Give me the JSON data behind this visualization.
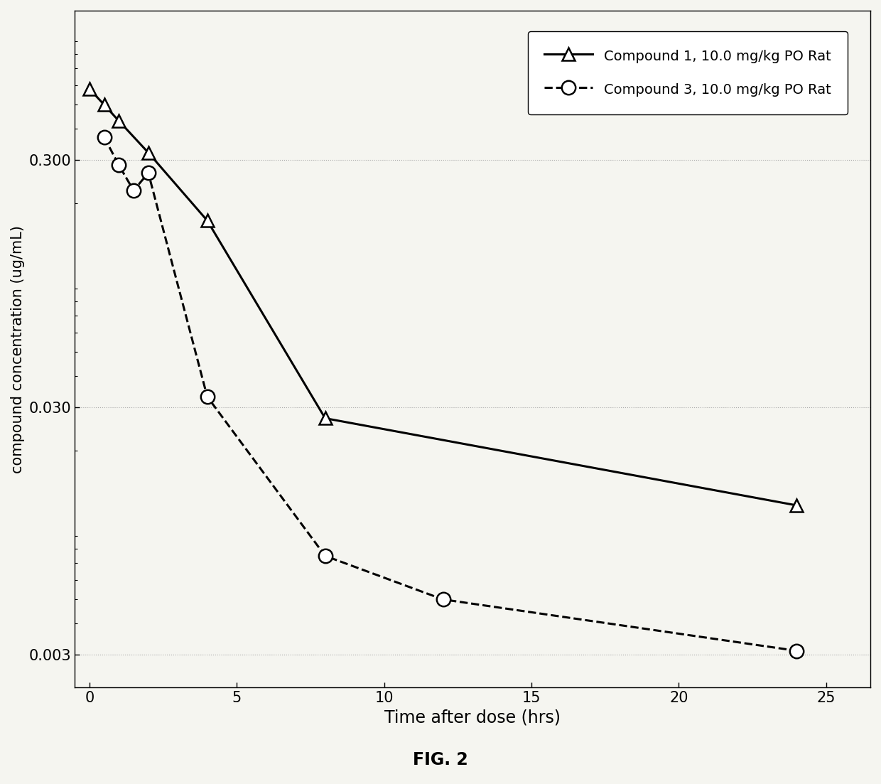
{
  "compound1_x": [
    0.0,
    0.5,
    1.0,
    2.0,
    4.0,
    8.0,
    24.0
  ],
  "compound1_y": [
    0.58,
    0.5,
    0.43,
    0.32,
    0.17,
    0.027,
    0.012
  ],
  "compound3_x": [
    0.5,
    1.0,
    1.5,
    2.0,
    4.0,
    8.0,
    12.0,
    24.0
  ],
  "compound3_y": [
    0.37,
    0.285,
    0.225,
    0.265,
    0.033,
    0.0075,
    0.005,
    0.0031
  ],
  "yticks": [
    0.003,
    0.03,
    0.3
  ],
  "ytick_labels": [
    "0.003",
    "0.030",
    "0.300"
  ],
  "xticks": [
    0,
    5,
    10,
    15,
    20,
    25
  ],
  "xlabel": "Time after dose (hrs)",
  "ylabel": "compound concentration (ug/mL)",
  "legend1": "Compound 1, 10.0 mg/kg PO Rat",
  "legend2": "Compound 3, 10.0 mg/kg PO Rat",
  "fig_label": "FIG. 2",
  "line_color": "#000000",
  "bg_color": "#f5f5f0",
  "ylim": [
    0.0022,
    1.2
  ],
  "xlim": [
    -0.5,
    26.5
  ]
}
